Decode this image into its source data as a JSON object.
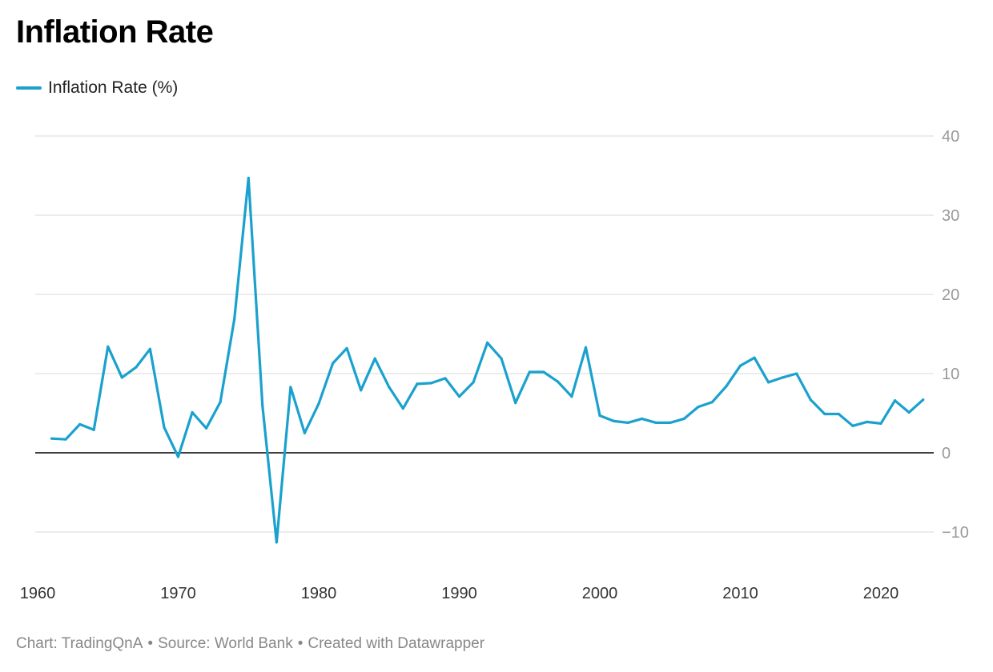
{
  "colors": {
    "line": "#1aa1ce",
    "grid": "#e0e0e0",
    "zero": "#000000"
  },
  "title": "Inflation Rate",
  "legend": {
    "label": "Inflation Rate (%)"
  },
  "footer": {
    "chart_credit": "Chart: TradingQnA",
    "source": "Source: World Bank",
    "created": "Created with Datawrapper",
    "separator": "•"
  },
  "chart_data": {
    "type": "line",
    "title": "Inflation Rate",
    "xlabel": "",
    "ylabel": "",
    "xlim": [
      1960,
      2023
    ],
    "ylim": [
      -15,
      40
    ],
    "x_ticks": [
      "1960",
      "1970",
      "1980",
      "1990",
      "2000",
      "2010",
      "2020"
    ],
    "y_ticks": [
      "40",
      "30",
      "20",
      "10",
      "0",
      "−10"
    ],
    "grid": true,
    "legend_position": "top-left",
    "series": [
      {
        "name": "Inflation Rate (%)",
        "x": [
          1961,
          1962,
          1963,
          1964,
          1965,
          1966,
          1967,
          1968,
          1969,
          1970,
          1971,
          1972,
          1973,
          1974,
          1975,
          1976,
          1977,
          1978,
          1979,
          1980,
          1981,
          1982,
          1983,
          1984,
          1985,
          1986,
          1987,
          1988,
          1989,
          1990,
          1991,
          1992,
          1993,
          1994,
          1995,
          1996,
          1997,
          1998,
          1999,
          2000,
          2001,
          2002,
          2003,
          2004,
          2005,
          2006,
          2007,
          2008,
          2009,
          2010,
          2011,
          2012,
          2013,
          2014,
          2015,
          2016,
          2017,
          2018,
          2019,
          2020,
          2021,
          2022,
          2023
        ],
        "values": [
          1.8,
          1.7,
          3.6,
          2.9,
          13.4,
          9.5,
          10.8,
          13.1,
          3.2,
          -0.5,
          5.1,
          3.1,
          6.4,
          16.9,
          34.7,
          5.9,
          -11.3,
          8.3,
          2.5,
          6.2,
          11.3,
          13.2,
          7.9,
          11.9,
          8.3,
          5.6,
          8.7,
          8.8,
          9.4,
          7.1,
          8.9,
          13.9,
          11.9,
          6.3,
          10.2,
          10.2,
          9.0,
          7.1,
          13.3,
          4.7,
          4.0,
          3.8,
          4.3,
          3.8,
          3.8,
          4.3,
          5.8,
          6.4,
          8.4,
          11.0,
          12.0,
          8.9,
          9.5,
          10.0,
          6.7,
          4.9,
          4.9,
          3.4,
          3.9,
          3.7,
          6.6,
          5.1,
          6.7
        ]
      }
    ]
  }
}
